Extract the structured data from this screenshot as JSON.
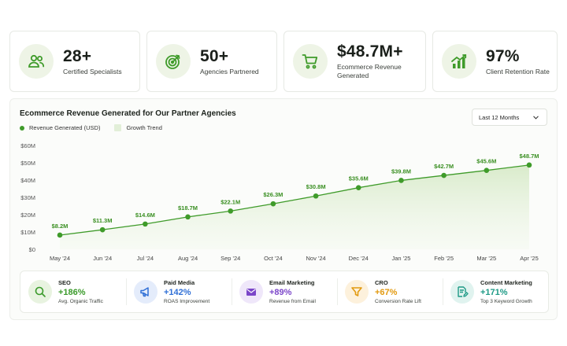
{
  "stats": [
    {
      "value": "28+",
      "label": "Certified Specialists",
      "icon": "people-icon"
    },
    {
      "value": "50+",
      "label": "Agencies Partnered",
      "icon": "target-icon"
    },
    {
      "value": "$48.7M+",
      "label": "Ecommerce Revenue Generated",
      "icon": "cart-icon"
    },
    {
      "value": "97%",
      "label": "Client Retention Rate",
      "icon": "growth-chart-icon"
    }
  ],
  "panel": {
    "title": "Ecommerce Revenue Generated for Our Partner Agencies",
    "dropdown_value": "Last 12 Months",
    "legend": {
      "line": "Revenue Generated (USD)",
      "area": "Growth Trend"
    }
  },
  "chart_data": {
    "type": "line",
    "title": "Ecommerce Revenue Generated for Our Partner Agencies",
    "categories": [
      "May '24",
      "Jun '24",
      "Jul '24",
      "Aug '24",
      "Sep '24",
      "Oct '24",
      "Nov '24",
      "Dec '24",
      "Jan '25",
      "Feb '25",
      "Mar '25",
      "Apr '25"
    ],
    "series": [
      {
        "name": "Revenue Generated (USD)",
        "values": [
          8.2,
          11.3,
          14.6,
          18.7,
          22.1,
          26.3,
          30.8,
          35.6,
          39.8,
          42.7,
          45.6,
          48.7
        ],
        "labels": [
          "$8.2M",
          "$11.3M",
          "$14.6M",
          "$18.7M",
          "$22.1M",
          "$26.3M",
          "$30.8M",
          "$35.6M",
          "$39.8M",
          "$42.7M",
          "$45.6M",
          "$48.7M"
        ]
      }
    ],
    "y_ticks": [
      "$0",
      "$10M",
      "$20M",
      "$30M",
      "$40M",
      "$50M",
      "$60M"
    ],
    "ylim": [
      0,
      60
    ],
    "area_fill": "Growth Trend",
    "grid": false,
    "legend_position": "top-left",
    "colors": {
      "line": "#3f9b2a",
      "area": "#e2efd8",
      "label": "#3a8f22"
    }
  },
  "channels": [
    {
      "name": "SEO",
      "value": "+186%",
      "desc": "Avg. Organic Traffic",
      "icon": "search-icon",
      "color": "#3a9a2a",
      "bg": "#e8f3e0"
    },
    {
      "name": "Paid Media",
      "value": "+142%",
      "desc": "ROAS Improvement",
      "icon": "megaphone-icon",
      "color": "#2f6fd6",
      "bg": "#e4ecfb"
    },
    {
      "name": "Email Marketing",
      "value": "+89%",
      "desc": "Revenue from Email",
      "icon": "envelope-icon",
      "color": "#7b46c9",
      "bg": "#efe7fa"
    },
    {
      "name": "CRO",
      "value": "+67%",
      "desc": "Conversion Rate Lift",
      "icon": "funnel-icon",
      "color": "#e29a10",
      "bg": "#fdf1dc"
    },
    {
      "name": "Content Marketing",
      "value": "+171%",
      "desc": "Top 3 Keyword Growth",
      "icon": "document-edit-icon",
      "color": "#1e9a86",
      "bg": "#e0f3ef"
    }
  ]
}
